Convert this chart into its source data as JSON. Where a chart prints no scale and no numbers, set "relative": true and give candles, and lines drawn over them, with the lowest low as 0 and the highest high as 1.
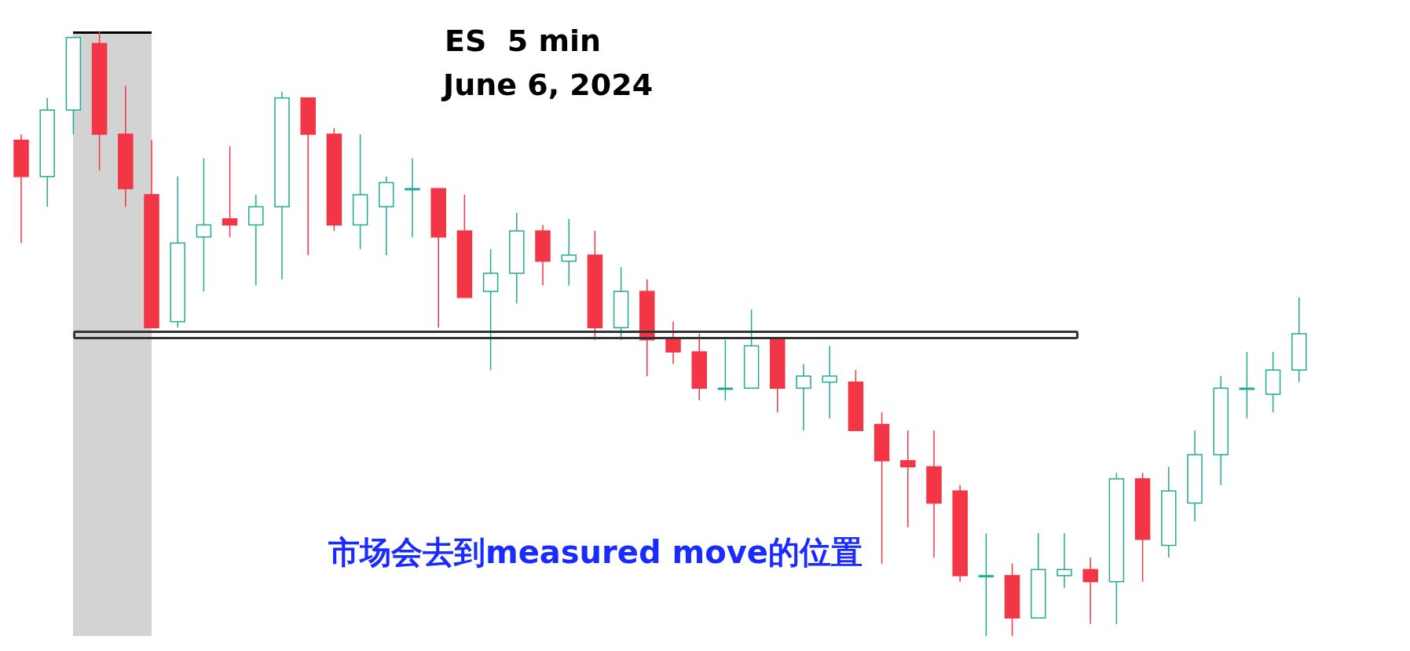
{
  "chart_data": {
    "type": "candlestick",
    "title": "ES  5 min",
    "subtitle": "June 6, 2024",
    "relative": true,
    "tick_labels": false,
    "annotations": [
      "市场会去到measured move的位置"
    ],
    "categories": [
      null,
      null,
      null,
      null,
      null,
      null,
      null,
      null,
      null,
      null,
      null,
      null,
      null,
      null,
      null,
      null,
      null,
      null,
      null,
      null,
      null,
      null,
      null,
      null,
      null,
      null,
      null,
      null,
      null,
      null,
      null,
      null,
      null,
      null,
      null,
      null,
      null,
      null,
      null,
      null,
      null,
      null,
      null,
      null,
      null,
      null,
      null,
      null,
      null,
      null
    ],
    "ohlc": [
      [
        0.82,
        0.83,
        0.65,
        0.76
      ],
      [
        0.76,
        0.89,
        0.71,
        0.87
      ],
      [
        0.87,
        0.99,
        0.83,
        0.99
      ],
      [
        0.98,
        1,
        0.77,
        0.83
      ],
      [
        0.83,
        0.91,
        0.71,
        0.74
      ],
      [
        0.73,
        0.82,
        0.51,
        0.51
      ],
      [
        0.52,
        0.76,
        0.51,
        0.65
      ],
      [
        0.66,
        0.79,
        0.57,
        0.68
      ],
      [
        0.69,
        0.81,
        0.66,
        0.68
      ],
      [
        0.68,
        0.73,
        0.58,
        0.71
      ],
      [
        0.71,
        0.9,
        0.59,
        0.89
      ],
      [
        0.89,
        0.89,
        0.63,
        0.83
      ],
      [
        0.83,
        0.84,
        0.67,
        0.68
      ],
      [
        0.68,
        0.83,
        0.64,
        0.73
      ],
      [
        0.71,
        0.76,
        0.63,
        0.75
      ],
      [
        0.74,
        0.79,
        0.66,
        0.74
      ],
      [
        0.74,
        0.74,
        0.51,
        0.66
      ],
      [
        0.67,
        0.73,
        0.56,
        0.56
      ],
      [
        0.57,
        0.64,
        0.44,
        0.6
      ],
      [
        0.6,
        0.7,
        0.55,
        0.67
      ],
      [
        0.67,
        0.68,
        0.58,
        0.62
      ],
      [
        0.62,
        0.69,
        0.58,
        0.63
      ],
      [
        0.63,
        0.67,
        0.49,
        0.51
      ],
      [
        0.51,
        0.61,
        0.49,
        0.57
      ],
      [
        0.57,
        0.59,
        0.43,
        0.49
      ],
      [
        0.49,
        0.52,
        0.45,
        0.47
      ],
      [
        0.47,
        0.5,
        0.39,
        0.41
      ],
      [
        0.41,
        0.49,
        0.39,
        0.41
      ],
      [
        0.41,
        0.54,
        0.41,
        0.48
      ],
      [
        0.49,
        0.49,
        0.37,
        0.41
      ],
      [
        0.41,
        0.45,
        0.34,
        0.43
      ],
      [
        0.42,
        0.48,
        0.36,
        0.43
      ],
      [
        0.42,
        0.44,
        0.34,
        0.34
      ],
      [
        0.35,
        0.37,
        0.12,
        0.29
      ],
      [
        0.29,
        0.34,
        0.18,
        0.28
      ],
      [
        0.28,
        0.34,
        0.13,
        0.22
      ],
      [
        0.24,
        0.25,
        0.09,
        0.1
      ],
      [
        0.1,
        0.17,
        0,
        0.1
      ],
      [
        0.1,
        0.12,
        0,
        0.03
      ],
      [
        0.03,
        0.17,
        0.03,
        0.11
      ],
      [
        0.1,
        0.17,
        0.08,
        0.11
      ],
      [
        0.11,
        0.13,
        0.02,
        0.09
      ],
      [
        0.09,
        0.27,
        0.02,
        0.26
      ],
      [
        0.26,
        0.27,
        0.09,
        0.16
      ],
      [
        0.15,
        0.28,
        0.13,
        0.24
      ],
      [
        0.22,
        0.34,
        0.19,
        0.3
      ],
      [
        0.3,
        0.43,
        0.25,
        0.41
      ],
      [
        0.41,
        0.47,
        0.36,
        0.41
      ],
      [
        0.4,
        0.47,
        0.37,
        0.44
      ],
      [
        0.44,
        0.56,
        0.42,
        0.5
      ]
    ],
    "colors": [
      "#f23645",
      "#22ab94",
      "#22ab94",
      "#f23645",
      "#f23645",
      "#f23645",
      "#22ab94",
      "#22ab94",
      "#f23645",
      "#22ab94",
      "#22ab94",
      "#f23645",
      "#f23645",
      "#22ab94",
      "#22ab94",
      "#22ab94",
      "#f23645",
      "#f23645",
      "#22ab94",
      "#22ab94",
      "#f23645",
      "#22ab94",
      "#f23645",
      "#22ab94",
      "#f23645",
      "#f23645",
      "#f23645",
      "#22ab94",
      "#22ab94",
      "#f23645",
      "#22ab94",
      "#22ab94",
      "#f23645",
      "#f23645",
      "#f23645",
      "#f23645",
      "#f23645",
      "#22ab94",
      "#f23645",
      "#22ab94",
      "#22ab94",
      "#f23645",
      "#22ab94",
      "#f23645",
      "#22ab94",
      "#22ab94",
      "#22ab94",
      "#22ab94",
      "#22ab94",
      "#22ab94"
    ],
    "grid": false,
    "legend": false
  }
}
